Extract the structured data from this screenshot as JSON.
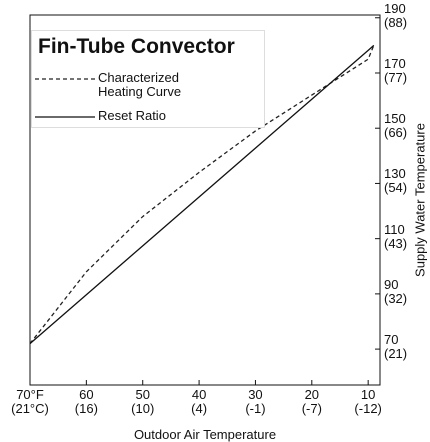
{
  "chart_data": {
    "type": "line",
    "title": "Fin-Tube Convector",
    "x_label": "Outdoor Air Temperature",
    "y_label": "Supply Water Temperature",
    "x": [
      70,
      60,
      50,
      40,
      30,
      20,
      10,
      9
    ],
    "series": [
      {
        "name": "Characterized Heating Curve",
        "color": "#222222",
        "dash": true,
        "values": [
          72,
          98,
          118,
          134,
          149,
          162,
          175,
          180
        ]
      },
      {
        "name": "Reset Ratio",
        "color": "#111111",
        "dash": false,
        "values": [
          72,
          89.7,
          107.4,
          125.1,
          142.8,
          160.5,
          178.2,
          180
        ]
      }
    ],
    "xlim": [
      70,
      7.9
    ],
    "ylim": [
      57,
      191
    ],
    "xticks": [
      {
        "value": 70,
        "label": "70°F\n(21°C)"
      },
      {
        "value": 60,
        "label": "60\n(16)"
      },
      {
        "value": 50,
        "label": "50\n(10)"
      },
      {
        "value": 40,
        "label": "40\n(4)"
      },
      {
        "value": 30,
        "label": "30\n(-1)"
      },
      {
        "value": 20,
        "label": "20\n(-7)"
      },
      {
        "value": 10,
        "label": "10\n(-12)"
      }
    ],
    "yticks": [
      {
        "value": 70,
        "label": "70\n(21)"
      },
      {
        "value": 90,
        "label": "90\n(32)"
      },
      {
        "value": 110,
        "label": "110\n(43)"
      },
      {
        "value": 130,
        "label": "130\n(54)"
      },
      {
        "value": 150,
        "label": "150\n(66)"
      },
      {
        "value": 170,
        "label": "170\n(77)"
      },
      {
        "value": 190,
        "label": "190\n(88)"
      }
    ]
  }
}
